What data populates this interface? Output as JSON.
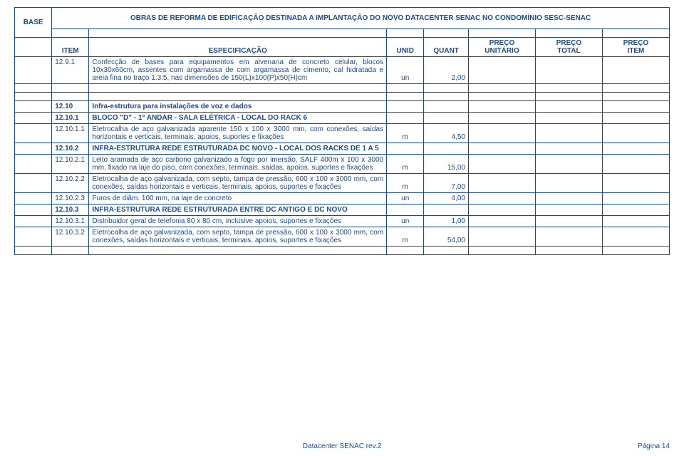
{
  "header": {
    "base": "BASE",
    "title": "OBRAS DE REFORMA DE EDIFICAÇÃO DESTINADA A IMPLANTAÇÃO DO NOVO DATACENTER SENAC NO CONDOMÍNIO SESC-SENAC",
    "item": "ITEM",
    "spec": "ESPECIFICAÇÃO",
    "unid": "UNID",
    "quant": "QUANT",
    "preco_unit1": "PREÇO",
    "preco_unit2": "UNITÁRIO",
    "preco_tot1": "PREÇO",
    "preco_tot2": "TOTAL",
    "preco_it1": "PREÇO",
    "preco_it2": "ITEM"
  },
  "rows": {
    "r0": {
      "item": "12.9.1",
      "spec": "Confecção de bases para equipamentos em alvenaria de concreto celular, blocos 10x30x60cm, assentes com argamassa de com argamassa de cimento, cal hidratada e areia fina no traço 1:3:5, nas dimensões de 150(L)x100(P)x50(H)cm",
      "unid": "un",
      "quant": "2,00"
    },
    "r1": {
      "item": "12.10",
      "spec": "Infra-estrutura para instalações de voz e dados"
    },
    "r2": {
      "item": "12.10.1",
      "spec": "BLOCO \"D\" - 1° ANDAR - SALA ELÉTRICA - LOCAL DO RACK 6"
    },
    "r3": {
      "item": "12.10.1.1",
      "spec": "Eletrocalha de aço galvanizada aparente 150 x 100 x 3000 mm, com conexões, saídas horizontais e verticais, terminais, apoios, suportes e fixações",
      "unid": "m",
      "quant": "4,50"
    },
    "r4": {
      "item": "12.10.2",
      "spec": "INFRA-ESTRUTURA REDE ESTRUTURADA DC NOVO - LOCAL DOS RACKS DE 1 A 5"
    },
    "r5": {
      "item": "12.10.2.1",
      "spec": "Leito aramada de aço carbono galvanizado a fogo por imersão, SALF 400m x 100 x 3000 mm, fixado na laje do piso, com conexões, terminais, saídas, apoios, suportes e fixações",
      "unid": "m",
      "quant": "15,00"
    },
    "r6": {
      "item": "12.10.2.2",
      "spec": "Eletrocalha de aço galvanizada, com septo, tampa de pressão, 600 x 100 x 3000 mm, com conexões, saídas horizontais e verticais, terminais, apoios, suportes e fixações",
      "unid": "m",
      "quant": "7,00"
    },
    "r7": {
      "item": "12.10.2.3",
      "spec": "Furos de diâm. 100 mm, na laje de concreto",
      "unid": "un",
      "quant": "4,00"
    },
    "r8": {
      "item": "12.10.3",
      "spec": "INFRA-ESTRUTURA REDE ESTRUTURADA ENTRE DC ANTIGO E DC NOVO"
    },
    "r9": {
      "item": "12.10.3.1",
      "spec": "Distribuidor geral de telefonia 80 x 80 cm, inclusive apoios, suportes e fixações",
      "unid": "un",
      "quant": "1,00"
    },
    "r10": {
      "item": "12.10.3.2",
      "spec": "Eletrocalha de aço galvanizada, com septo, tampa de pressão, 600 x 100 x 3000 mm, com conexões, saídas horizontais e verticais, terminais, apoios, suportes e fixações",
      "unid": "m",
      "quant": "54,00"
    }
  },
  "footer": {
    "center": "Datacenter SENAC rev.2",
    "page": "Página 14"
  },
  "style": {
    "text_color": "#1a4b8c",
    "border_color": "#1a4b8c",
    "background": "#ffffff",
    "font_family": "Arial",
    "base_font_size_pt": 8
  }
}
